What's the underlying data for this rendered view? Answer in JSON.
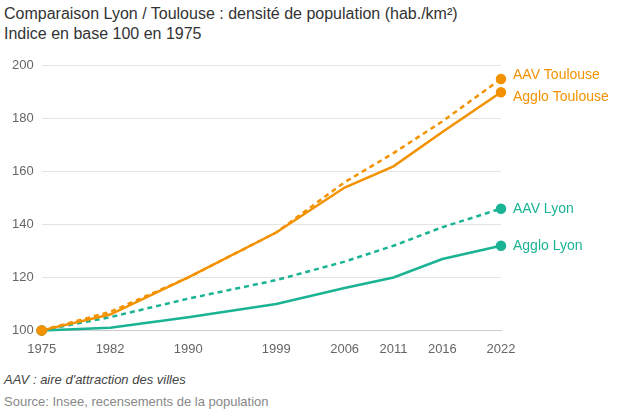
{
  "chart_data": {
    "type": "line",
    "title": "Comparaison Lyon / Toulouse : densité de population (hab./km²)",
    "subtitle": "Indice en base 100 en 1975",
    "annotations": [
      "AAV : aire d'attraction des villes",
      "Source: Insee, recensements de la population"
    ],
    "x": [
      1975,
      1982,
      1990,
      1999,
      2006,
      2011,
      2016,
      2022
    ],
    "xlim": [
      1975,
      2022
    ],
    "xticks": [
      1975,
      1982,
      1990,
      1999,
      2006,
      2011,
      2016,
      2022
    ],
    "ylim": [
      100,
      200
    ],
    "yticks": [
      100,
      120,
      140,
      160,
      180,
      200
    ],
    "grid": true,
    "series": [
      {
        "name": "AAV Toulouse",
        "color": "#f39200",
        "line_style": "dashed",
        "values": [
          100,
          107,
          120,
          137,
          156,
          167,
          179,
          195
        ]
      },
      {
        "name": "Agglo Toulouse",
        "color": "#f39200",
        "line_style": "solid",
        "values": [
          100,
          106,
          120,
          137,
          154,
          162,
          175,
          190
        ]
      },
      {
        "name": "AAV Lyon",
        "color": "#1ab394",
        "line_style": "dashed",
        "values": [
          100,
          105,
          112,
          119,
          126,
          132,
          139,
          146
        ]
      },
      {
        "name": "Agglo Lyon",
        "color": "#1ab394",
        "line_style": "solid",
        "values": [
          100,
          101,
          105,
          110,
          116,
          120,
          127,
          132
        ]
      }
    ]
  }
}
